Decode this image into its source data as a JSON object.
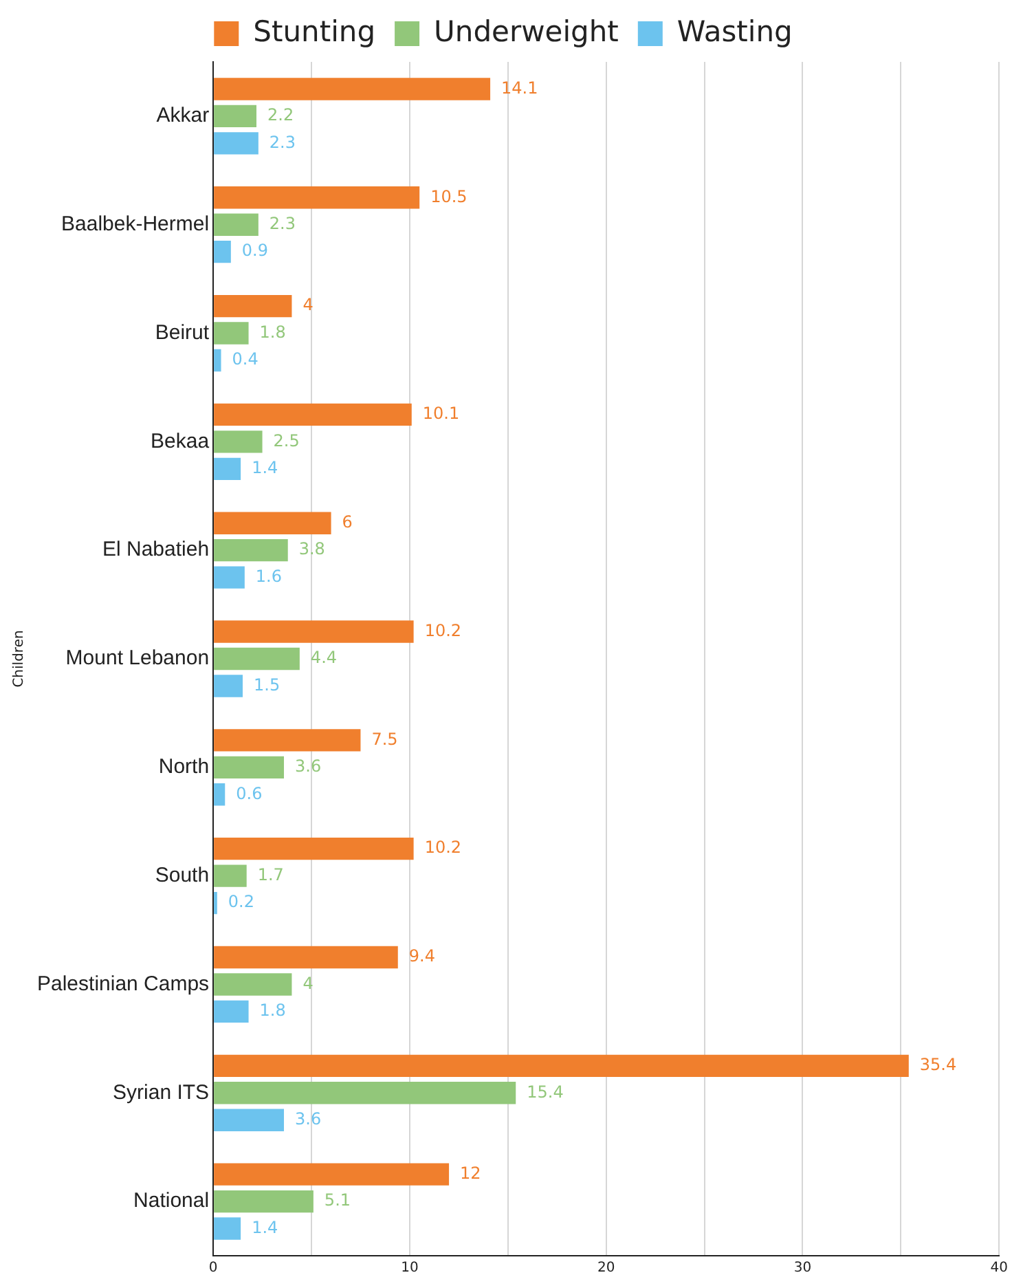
{
  "chart_data": {
    "type": "bar",
    "orientation": "horizontal",
    "ylabel": "Children",
    "categories": [
      "Akkar",
      "Baalbek-Hermel",
      "Beirut",
      "Bekaa",
      "El Nabatieh",
      "Mount Lebanon",
      "North",
      "South",
      "Palestinian Camps",
      "Syrian ITS",
      "National"
    ],
    "series": [
      {
        "name": "Stunting",
        "color": "#f07f2d",
        "values": [
          14.1,
          10.5,
          4,
          10.1,
          6,
          10.2,
          7.5,
          10.2,
          9.4,
          35.4,
          12
        ]
      },
      {
        "name": "Underweight",
        "color": "#92c77a",
        "values": [
          2.2,
          2.3,
          1.8,
          2.5,
          3.8,
          4.4,
          3.6,
          1.7,
          4,
          15.4,
          5.1
        ]
      },
      {
        "name": "Wasting",
        "color": "#6cc3ee",
        "values": [
          2.3,
          0.9,
          0.4,
          1.4,
          1.6,
          1.5,
          0.6,
          0.2,
          1.8,
          3.6,
          1.4
        ]
      }
    ],
    "xlim": [
      0,
      40
    ],
    "xticks": [
      0,
      {
        "value": 5,
        "label": null
      },
      10,
      {
        "value": 15,
        "label": null
      },
      20,
      {
        "value": 25,
        "label": null
      },
      30,
      {
        "value": 35,
        "label": null
      },
      40
    ],
    "grid": "x",
    "legend": "top",
    "data_labels": true
  }
}
